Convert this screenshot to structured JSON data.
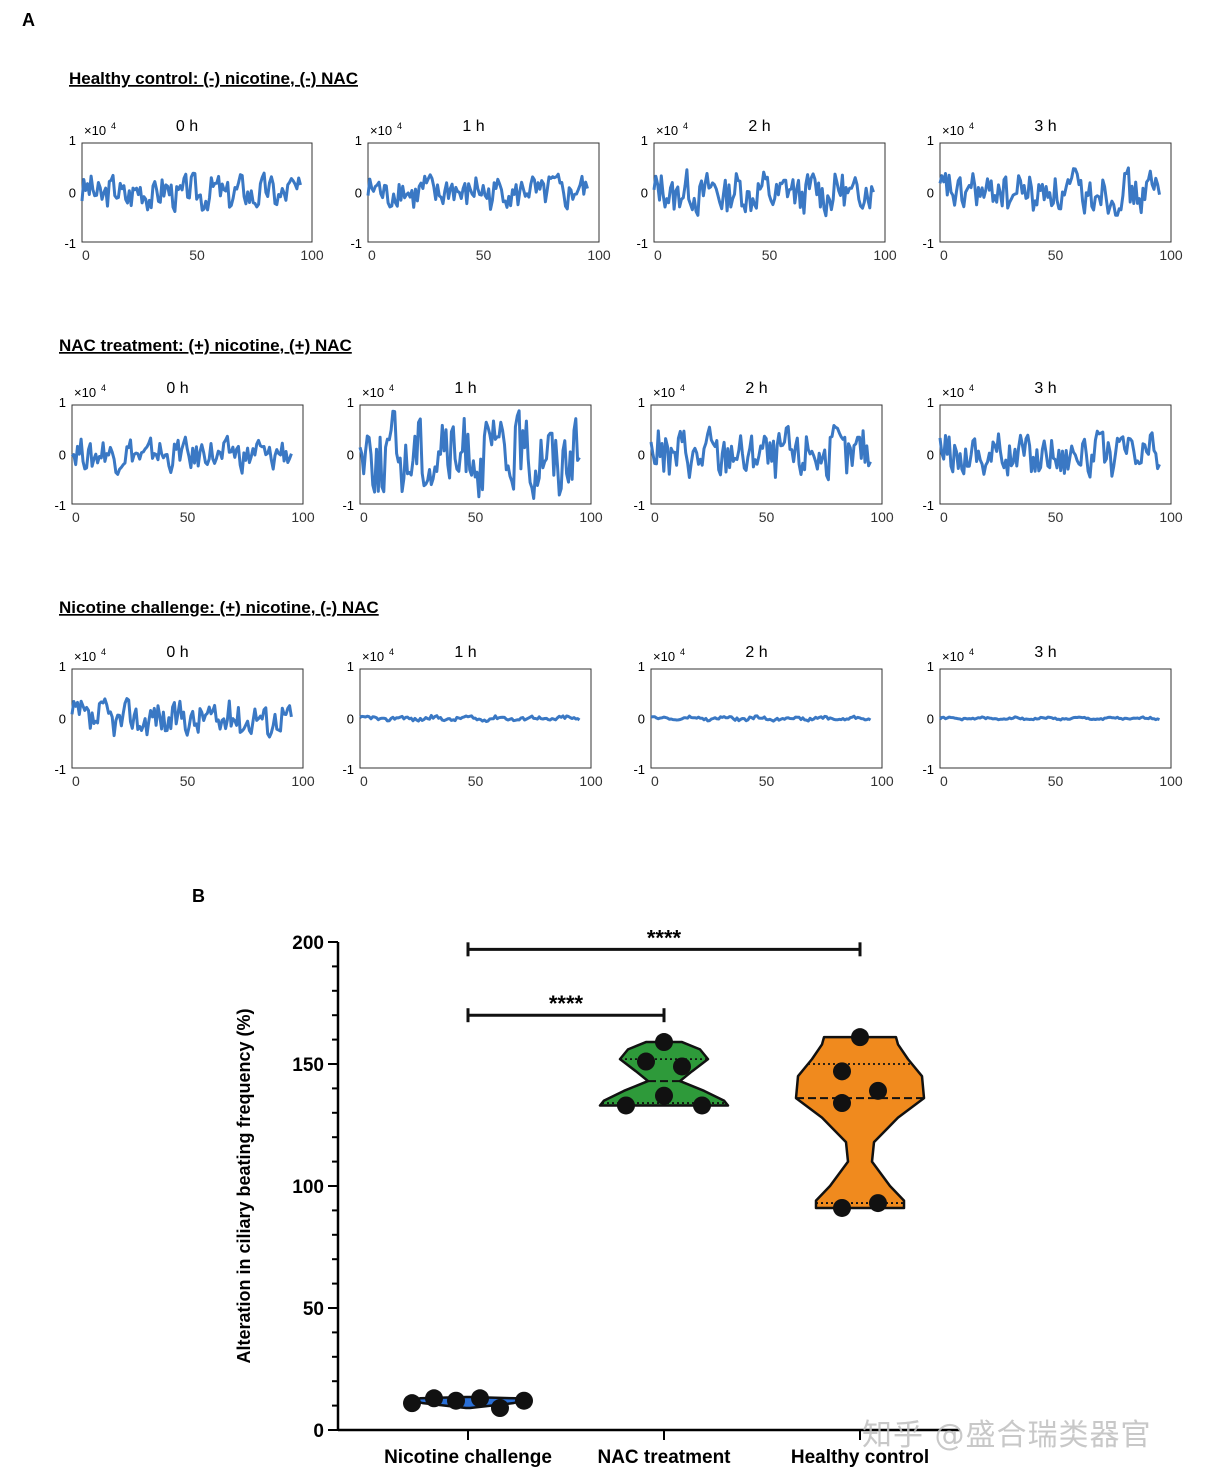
{
  "colors": {
    "trace": "#3a78c4",
    "nac_violin": "#2e9a3a",
    "healthy_violin": "#f08a1e",
    "nicotine_violin": "#2a6fd6",
    "dot": "#111111",
    "axis": "#000000"
  },
  "panel_a": {
    "label": "A",
    "rows": [
      {
        "title": "Healthy control: (-) nicotine, (-) NAC"
      },
      {
        "title": "NAC treatment: (+) nicotine, (+) NAC"
      },
      {
        "title": "Nicotine challenge: (+) nicotine, (-) NAC"
      }
    ],
    "times": [
      "0 h",
      "1 h",
      "2 h",
      "3 h"
    ],
    "multiplier": "×10",
    "exponent": "4",
    "y_ticks": [
      "1",
      "0",
      "-1"
    ],
    "x_ticks": [
      "0",
      "50",
      "100"
    ]
  },
  "panel_b": {
    "label": "B",
    "significance": [
      "****",
      "****"
    ]
  },
  "watermark": "知乎 @盛合瑞类器官",
  "chart_data": [
    {
      "type": "line",
      "panel": "A",
      "description_rows": [
        "Healthy control",
        "NAC treatment",
        "Nicotine challenge"
      ],
      "x_range": [
        0,
        100
      ],
      "ylim": [
        -1,
        1
      ],
      "y_scale_label": "×10^4",
      "xticks": [
        0,
        50,
        100
      ],
      "yticks": [
        -1,
        0,
        1
      ],
      "panels_amplitude_approx": [
        [
          0.38,
          0.38,
          0.45,
          0.45
        ],
        [
          0.35,
          0.85,
          0.55,
          0.45
        ],
        [
          0.38,
          0.06,
          0.05,
          0.03
        ]
      ],
      "traces_note": "Each subplot is a single oscillating series from x=0 to ~95; amplitude values are approximate peak magnitudes in units of 10^4."
    },
    {
      "type": "violin",
      "panel": "B",
      "ylabel": "Alteration in ciliary beating frequency (%)",
      "ylim": [
        0,
        200
      ],
      "yticks": [
        0,
        50,
        100,
        150,
        200
      ],
      "categories": [
        "Nicotine challenge",
        "NAC treatment",
        "Healthy control"
      ],
      "series": [
        {
          "category": "Nicotine challenge",
          "points": [
            11,
            13,
            12,
            13,
            9,
            12
          ],
          "median": 12,
          "q1": 11,
          "q3": 12.5,
          "range": [
            9,
            13
          ]
        },
        {
          "category": "NAC treatment",
          "points": [
            159,
            151,
            149,
            137,
            133,
            133
          ],
          "median": 143,
          "q1": 134,
          "q3": 152,
          "range": [
            133,
            159
          ]
        },
        {
          "category": "Healthy control",
          "points": [
            161,
            147,
            139,
            134,
            93,
            91
          ],
          "median": 136,
          "q1": 93,
          "q3": 150,
          "range": [
            91,
            161
          ]
        }
      ],
      "comparisons": [
        {
          "from": "Nicotine challenge",
          "to": "NAC treatment",
          "label": "****",
          "y": 170
        },
        {
          "from": "Nicotine challenge",
          "to": "Healthy control",
          "label": "****",
          "y": 197
        }
      ]
    }
  ]
}
